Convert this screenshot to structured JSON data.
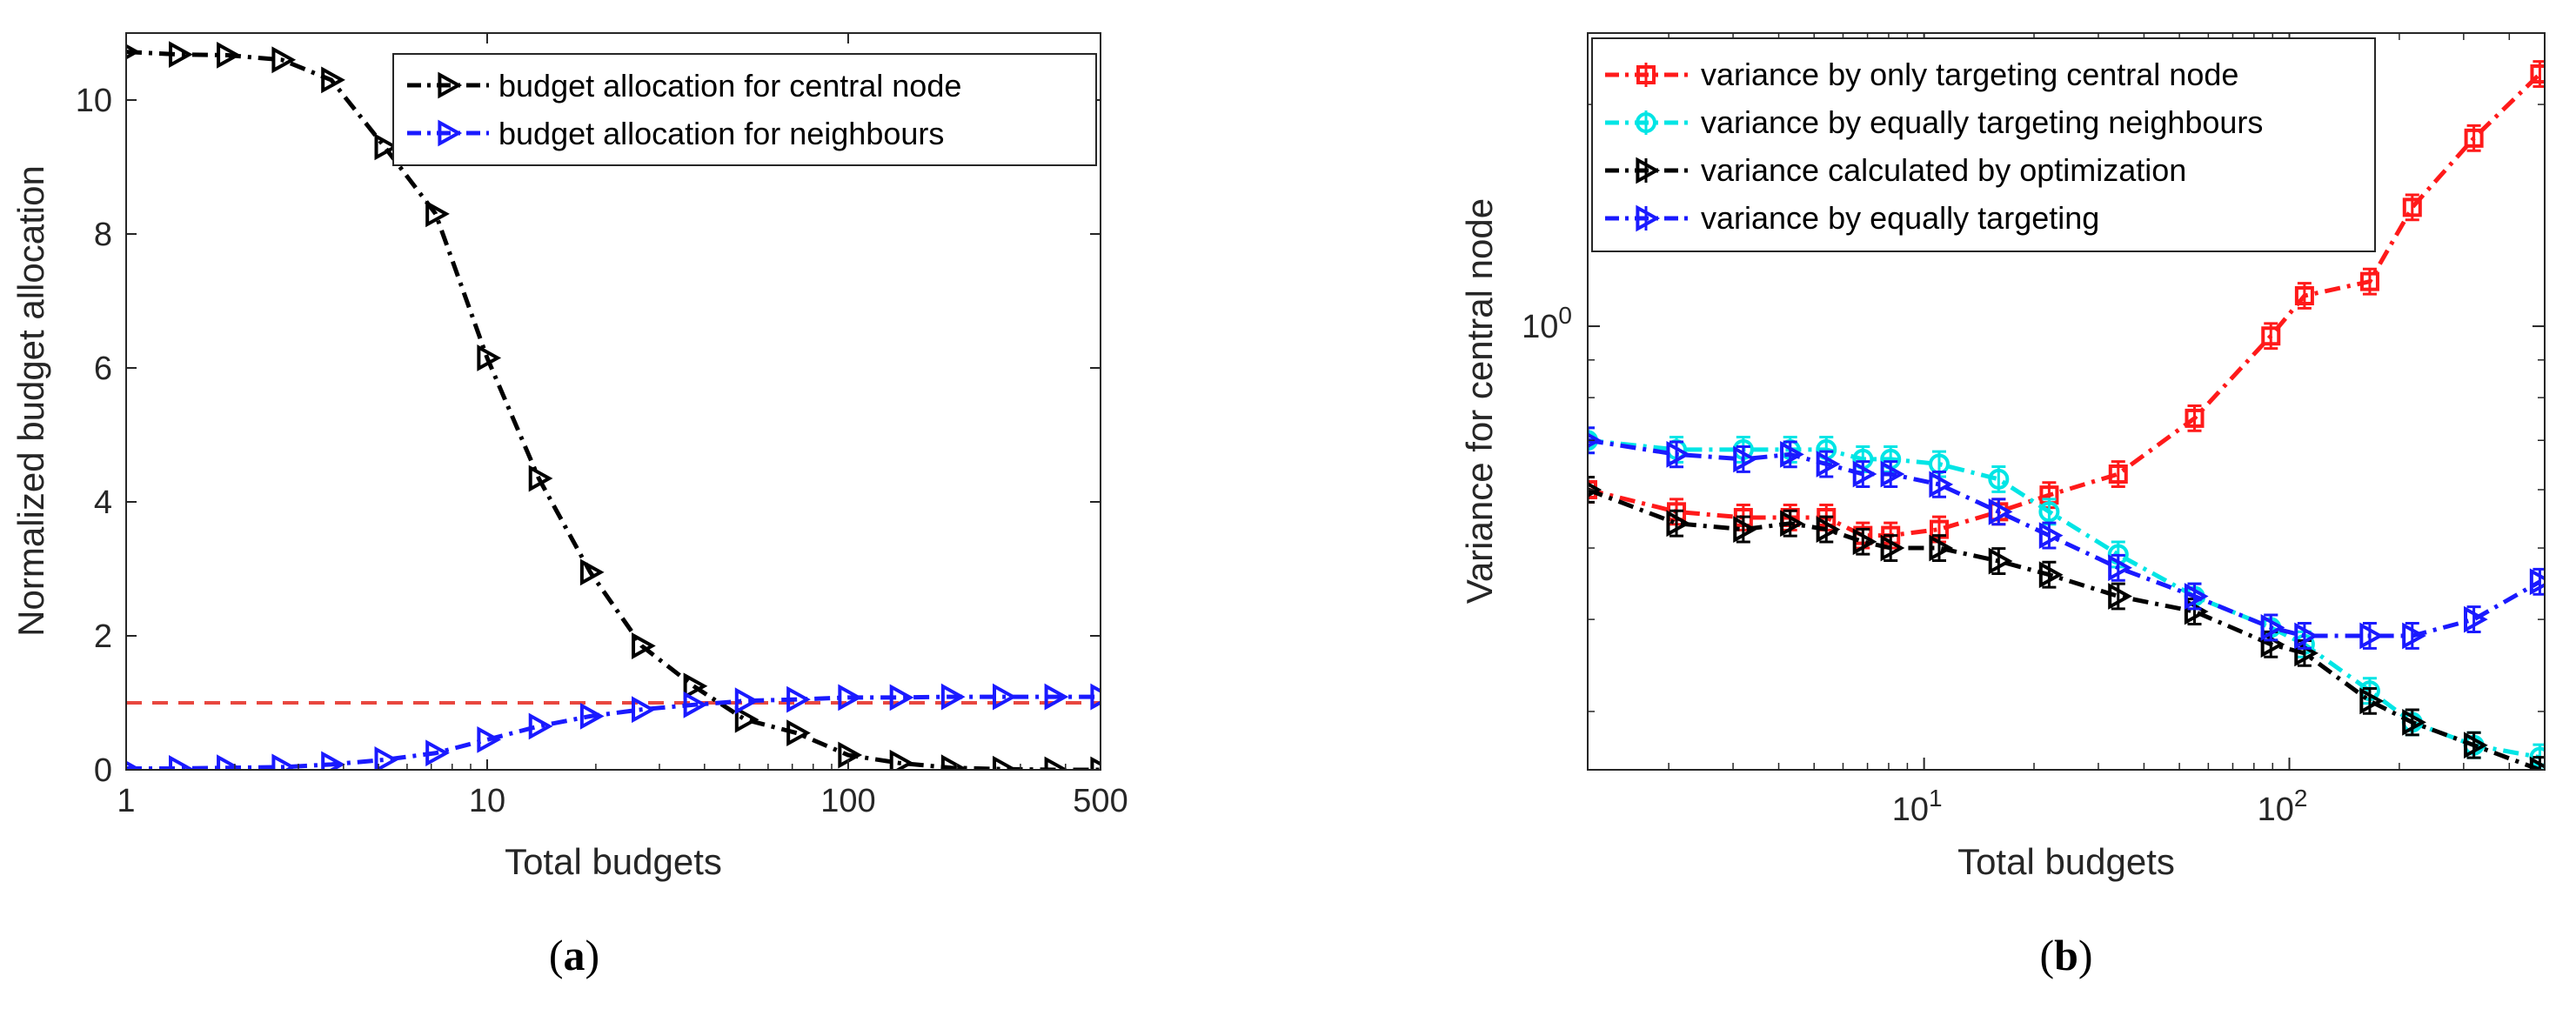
{
  "chart_data": [
    {
      "type": "line",
      "panel": "a",
      "caption": {
        "open": "(",
        "letter": "a",
        "close": ")"
      },
      "xlabel": "Total budgets",
      "ylabel": "Normalized budget allocation",
      "xscale": "log",
      "xlim": [
        1,
        500
      ],
      "ylim": [
        0,
        11
      ],
      "xticks": [
        1,
        10,
        100,
        500
      ],
      "xtick_labels": [
        "1",
        "10",
        "100",
        "500"
      ],
      "yticks": [
        0,
        2,
        4,
        6,
        8,
        10
      ],
      "ytick_labels": [
        "0",
        "2",
        "4",
        "6",
        "8",
        "10"
      ],
      "legend_position": "top-right",
      "reference_line": {
        "y": 1,
        "color": "#e8473f",
        "style": "dashed"
      },
      "x": [
        1,
        1.4,
        1.9,
        2.7,
        3.7,
        5.2,
        7.2,
        10,
        13.9,
        19.3,
        26.8,
        37.3,
        51.8,
        72,
        100,
        139,
        193,
        268,
        373,
        500
      ],
      "series": [
        {
          "name": "budget allocation for central node",
          "color": "#000000",
          "values": [
            10.72,
            10.68,
            10.67,
            10.6,
            10.3,
            9.3,
            8.3,
            6.15,
            4.35,
            2.95,
            1.85,
            1.25,
            0.75,
            0.55,
            0.22,
            0.1,
            0.03,
            0.01,
            0.0,
            0.0
          ]
        },
        {
          "name": "budget allocation for neighbours",
          "color": "#1a1aff",
          "values": [
            0.02,
            0.02,
            0.03,
            0.04,
            0.08,
            0.15,
            0.25,
            0.45,
            0.65,
            0.8,
            0.9,
            0.97,
            1.03,
            1.05,
            1.08,
            1.08,
            1.09,
            1.09,
            1.09,
            1.09
          ]
        }
      ]
    },
    {
      "type": "line",
      "panel": "b",
      "caption": {
        "open": "(",
        "letter": "b",
        "close": ")"
      },
      "xlabel": "Total budgets",
      "ylabel": "Variance for central node",
      "xscale": "log",
      "yscale": "log",
      "xlim": [
        1.2,
        500
      ],
      "ylim": [
        0.25,
        2.5
      ],
      "xticks": [
        10,
        100
      ],
      "xtick_labels": [
        {
          "base": "10",
          "exp": "1"
        },
        {
          "base": "10",
          "exp": "2"
        }
      ],
      "yticks": [
        1
      ],
      "ytick_labels": [
        {
          "base": "10",
          "exp": "0"
        }
      ],
      "legend_position": "top-left",
      "series": [
        {
          "name": "variance by only targeting central node",
          "color": "#ff1a1a",
          "marker": "square",
          "x": [
            1.2,
            2.1,
            3.2,
            4.3,
            5.4,
            6.8,
            8.1,
            11,
            16,
            22,
            34,
            55,
            89,
            110,
            166,
            217,
            320,
            485
          ],
          "values": [
            0.6,
            0.56,
            0.55,
            0.55,
            0.55,
            0.52,
            0.52,
            0.53,
            0.56,
            0.59,
            0.63,
            0.75,
            0.97,
            1.1,
            1.15,
            1.45,
            1.8,
            2.2
          ]
        },
        {
          "name": "variance by equally targeting neighbours",
          "color": "#00e5e5",
          "marker": "circle",
          "x": [
            1.2,
            2.1,
            3.2,
            4.3,
            5.4,
            6.8,
            8.1,
            11,
            16,
            22,
            34,
            55,
            89,
            110,
            166,
            217,
            320,
            485
          ],
          "values": [
            0.7,
            0.68,
            0.68,
            0.68,
            0.68,
            0.66,
            0.66,
            0.65,
            0.62,
            0.56,
            0.49,
            0.43,
            0.39,
            0.37,
            0.32,
            0.29,
            0.27,
            0.26
          ]
        },
        {
          "name": "variance calculated by optimization",
          "color": "#000000",
          "marker": "triangle",
          "x": [
            1.2,
            2.1,
            3.2,
            4.3,
            5.4,
            6.8,
            8.1,
            11,
            16,
            22,
            34,
            55,
            89,
            110,
            166,
            217,
            320,
            485
          ],
          "values": [
            0.6,
            0.54,
            0.53,
            0.54,
            0.53,
            0.51,
            0.5,
            0.5,
            0.48,
            0.46,
            0.43,
            0.41,
            0.37,
            0.36,
            0.31,
            0.29,
            0.27,
            0.25
          ]
        },
        {
          "name": "variance by equally targeting",
          "color": "#1a1aff",
          "marker": "triangle",
          "x": [
            1.2,
            2.1,
            3.2,
            4.3,
            5.4,
            6.8,
            8.1,
            11,
            16,
            22,
            34,
            55,
            89,
            110,
            166,
            217,
            320,
            485
          ],
          "values": [
            0.7,
            0.67,
            0.66,
            0.67,
            0.65,
            0.63,
            0.63,
            0.61,
            0.56,
            0.52,
            0.47,
            0.43,
            0.39,
            0.38,
            0.38,
            0.38,
            0.4,
            0.45
          ]
        }
      ]
    }
  ]
}
